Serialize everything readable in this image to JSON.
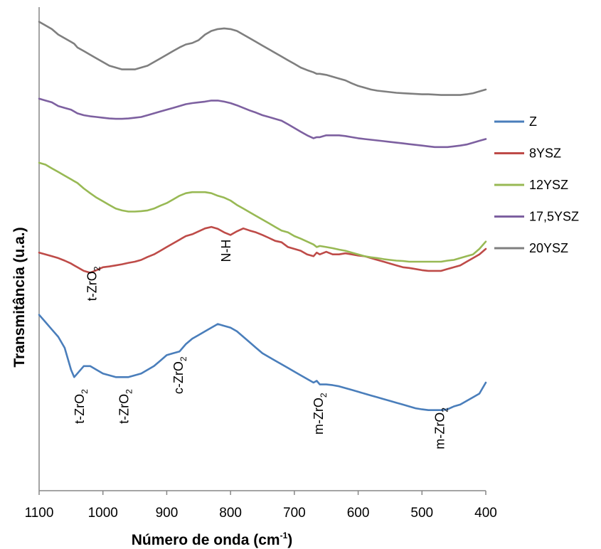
{
  "chart_data": {
    "type": "line",
    "xlabel": "Número de onda (cm-1)",
    "xlabel_main": "Número de onda (cm",
    "xlabel_sup": "-1",
    "xlabel_end": ")",
    "ylabel": "Transmitância (u.a.)",
    "xlim": [
      1100,
      400
    ],
    "x_reversed": true,
    "x_ticks": [
      1100,
      1000,
      900,
      800,
      700,
      600,
      500,
      400
    ],
    "y_ticks_shown": false,
    "grid": false,
    "legend_position": "right",
    "x": [
      1100,
      1090,
      1080,
      1070,
      1060,
      1050,
      1045,
      1040,
      1030,
      1020,
      1010,
      1000,
      990,
      980,
      970,
      960,
      950,
      940,
      930,
      920,
      910,
      900,
      890,
      880,
      870,
      860,
      850,
      840,
      830,
      820,
      810,
      800,
      790,
      780,
      770,
      760,
      750,
      740,
      730,
      720,
      710,
      700,
      690,
      680,
      670,
      665,
      660,
      650,
      640,
      630,
      620,
      610,
      600,
      590,
      580,
      570,
      560,
      550,
      540,
      530,
      520,
      510,
      500,
      490,
      480,
      470,
      460,
      450,
      440,
      430,
      420,
      410,
      400
    ],
    "series": [
      {
        "name": "Z",
        "color": "#4a7ebb",
        "values": [
          -1.7,
          -1.9,
          -2.1,
          -2.3,
          -2.6,
          -3.2,
          -3.4,
          -3.3,
          -3.1,
          -3.1,
          -3.2,
          -3.3,
          -3.35,
          -3.4,
          -3.4,
          -3.4,
          -3.35,
          -3.3,
          -3.2,
          -3.1,
          -2.95,
          -2.8,
          -2.75,
          -2.7,
          -2.5,
          -2.35,
          -2.25,
          -2.15,
          -2.05,
          -1.95,
          -2.0,
          -2.05,
          -2.15,
          -2.3,
          -2.45,
          -2.6,
          -2.75,
          -2.85,
          -2.95,
          -3.05,
          -3.15,
          -3.25,
          -3.35,
          -3.45,
          -3.55,
          -3.5,
          -3.6,
          -3.6,
          -3.62,
          -3.65,
          -3.7,
          -3.75,
          -3.8,
          -3.85,
          -3.9,
          -3.95,
          -4.0,
          -4.05,
          -4.1,
          -4.15,
          -4.2,
          -4.25,
          -4.28,
          -4.3,
          -4.3,
          -4.3,
          -4.28,
          -4.2,
          -4.15,
          -4.05,
          -3.95,
          -3.85,
          -3.55
        ]
      },
      {
        "name": "8YSZ",
        "color": "#be4b48",
        "values": [
          0.0,
          -0.05,
          -0.1,
          -0.15,
          -0.22,
          -0.3,
          -0.35,
          -0.4,
          -0.5,
          -0.55,
          -0.48,
          -0.4,
          -0.38,
          -0.35,
          -0.32,
          -0.28,
          -0.25,
          -0.2,
          -0.12,
          -0.05,
          0.05,
          0.15,
          0.25,
          0.35,
          0.45,
          0.5,
          0.58,
          0.66,
          0.7,
          0.65,
          0.55,
          0.48,
          0.58,
          0.66,
          0.6,
          0.55,
          0.48,
          0.4,
          0.32,
          0.28,
          0.15,
          0.1,
          0.05,
          -0.05,
          -0.1,
          0.0,
          -0.05,
          0.02,
          -0.05,
          -0.05,
          -0.02,
          -0.05,
          -0.08,
          -0.1,
          -0.15,
          -0.2,
          -0.25,
          -0.3,
          -0.35,
          -0.4,
          -0.42,
          -0.45,
          -0.48,
          -0.5,
          -0.5,
          -0.5,
          -0.45,
          -0.4,
          -0.35,
          -0.25,
          -0.15,
          -0.05,
          0.1
        ]
      },
      {
        "name": "12YSZ",
        "color": "#98b954",
        "values": [
          2.45,
          2.4,
          2.3,
          2.2,
          2.1,
          2.0,
          1.95,
          1.9,
          1.75,
          1.62,
          1.5,
          1.4,
          1.3,
          1.2,
          1.15,
          1.12,
          1.12,
          1.13,
          1.15,
          1.2,
          1.28,
          1.35,
          1.45,
          1.55,
          1.62,
          1.65,
          1.65,
          1.65,
          1.62,
          1.55,
          1.5,
          1.42,
          1.3,
          1.2,
          1.1,
          1.0,
          0.9,
          0.8,
          0.7,
          0.6,
          0.55,
          0.45,
          0.38,
          0.3,
          0.22,
          0.15,
          0.18,
          0.15,
          0.12,
          0.08,
          0.05,
          0.0,
          -0.05,
          -0.1,
          -0.13,
          -0.15,
          -0.18,
          -0.2,
          -0.22,
          -0.23,
          -0.25,
          -0.25,
          -0.25,
          -0.25,
          -0.25,
          -0.25,
          -0.22,
          -0.2,
          -0.15,
          -0.1,
          -0.05,
          0.1,
          0.3
        ]
      },
      {
        "name": "17,5YSZ",
        "color": "#7d60a0",
        "values": [
          4.2,
          4.15,
          4.1,
          4.0,
          3.95,
          3.9,
          3.85,
          3.8,
          3.75,
          3.72,
          3.7,
          3.68,
          3.66,
          3.65,
          3.65,
          3.66,
          3.68,
          3.7,
          3.75,
          3.8,
          3.85,
          3.9,
          3.95,
          4.0,
          4.05,
          4.08,
          4.1,
          4.12,
          4.15,
          4.15,
          4.12,
          4.08,
          4.02,
          3.95,
          3.88,
          3.82,
          3.75,
          3.7,
          3.65,
          3.6,
          3.5,
          3.4,
          3.3,
          3.2,
          3.12,
          3.15,
          3.15,
          3.2,
          3.2,
          3.2,
          3.18,
          3.15,
          3.12,
          3.1,
          3.08,
          3.06,
          3.04,
          3.02,
          3.0,
          2.98,
          2.96,
          2.94,
          2.92,
          2.9,
          2.88,
          2.88,
          2.88,
          2.9,
          2.92,
          2.95,
          3.0,
          3.05,
          3.1
        ]
      },
      {
        "name": "20YSZ",
        "color": "#7f7f7f",
        "values": [
          6.3,
          6.2,
          6.1,
          5.95,
          5.85,
          5.75,
          5.7,
          5.6,
          5.5,
          5.4,
          5.3,
          5.2,
          5.1,
          5.05,
          5.0,
          5.0,
          5.0,
          5.05,
          5.1,
          5.2,
          5.3,
          5.4,
          5.5,
          5.6,
          5.68,
          5.72,
          5.8,
          5.95,
          6.05,
          6.1,
          6.12,
          6.1,
          6.05,
          5.95,
          5.85,
          5.75,
          5.65,
          5.55,
          5.45,
          5.35,
          5.25,
          5.15,
          5.05,
          4.98,
          4.92,
          4.88,
          4.88,
          4.85,
          4.8,
          4.75,
          4.7,
          4.62,
          4.55,
          4.5,
          4.45,
          4.42,
          4.4,
          4.38,
          4.36,
          4.35,
          4.34,
          4.33,
          4.32,
          4.32,
          4.31,
          4.3,
          4.3,
          4.3,
          4.3,
          4.32,
          4.35,
          4.4,
          4.45
        ]
      }
    ],
    "annotations": [
      {
        "base": "t-ZrO",
        "sub": "2",
        "x": 1030,
        "y": -4.2
      },
      {
        "base": "t-ZrO",
        "sub": "2",
        "x": 960,
        "y": -4.2
      },
      {
        "base": "c-ZrO",
        "sub": "2",
        "x": 875,
        "y": -3.35
      },
      {
        "base": "m-ZrO",
        "sub": "2",
        "x": 655,
        "y": -4.4
      },
      {
        "base": "m-ZrO",
        "sub": "2",
        "x": 465,
        "y": -4.8
      },
      {
        "base": "t-ZrO",
        "sub": "2",
        "x": 1010,
        "y": -0.85
      },
      {
        "base": "N-H",
        "sub": "",
        "x": 800,
        "y": 0.05
      }
    ]
  }
}
